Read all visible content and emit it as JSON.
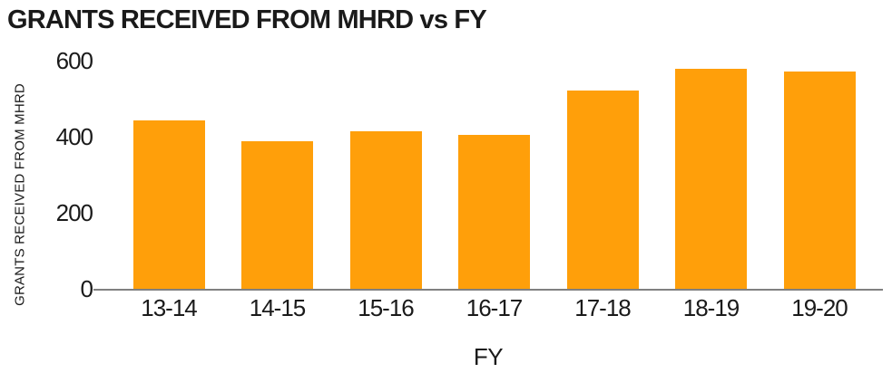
{
  "chart_data": {
    "type": "bar",
    "title": "GRANTS RECEIVED FROM MHRD vs FY",
    "xlabel": "FY",
    "ylabel": "GRANTS RECEIVED FROM MHRD",
    "categories": [
      "13-14",
      "14-15",
      "15-16",
      "16-17",
      "17-18",
      "18-19",
      "19-20"
    ],
    "values": [
      445,
      390,
      416,
      406,
      524,
      580,
      574
    ],
    "ylim": [
      0,
      600
    ],
    "yticks": [
      0,
      200,
      400,
      600
    ],
    "grid": false,
    "legend": false,
    "bar_color": "#FF9F0A",
    "axis_line_color": "#808080",
    "text_color": "#1A1A1A"
  }
}
